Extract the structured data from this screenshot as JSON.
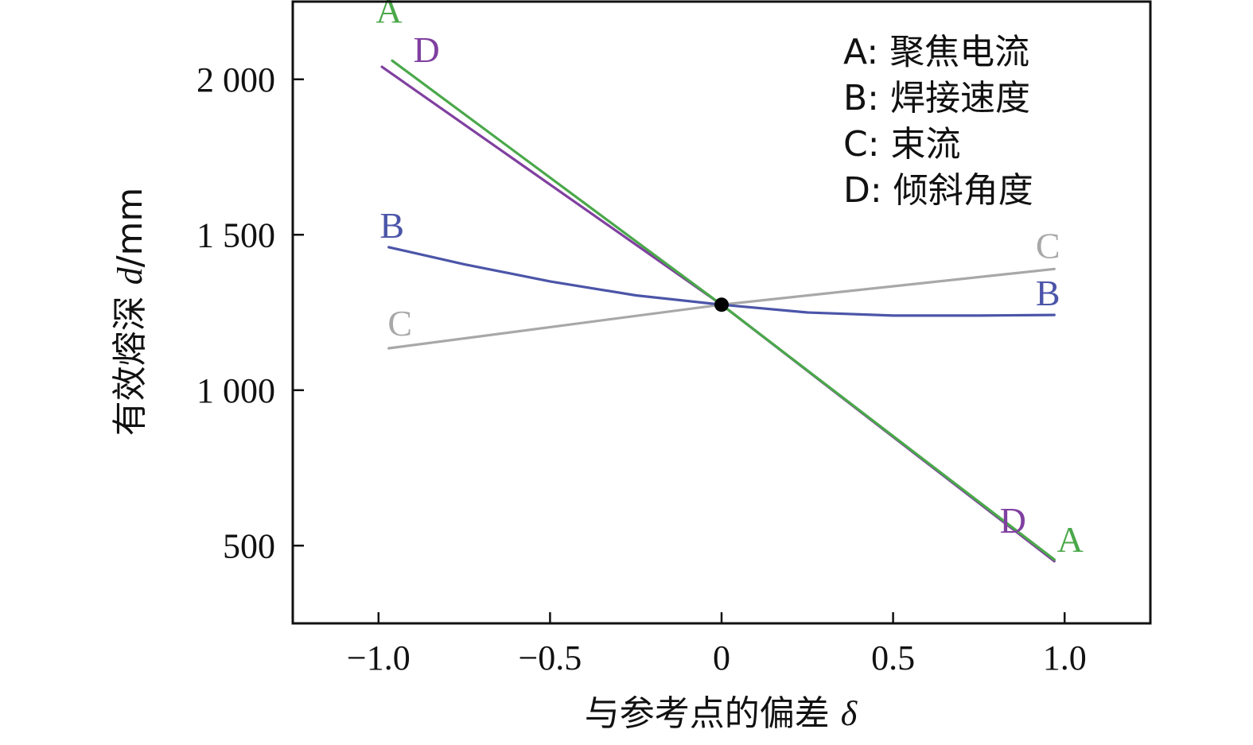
{
  "chart_data": {
    "type": "line",
    "xlabel_text": "与参考点的偏差 ",
    "xlabel_symbol": "δ",
    "ylabel_text": "有效熔深 ",
    "ylabel_symbol": "d",
    "ylabel_unit": "/mm",
    "xlim": [
      -1.25,
      1.25
    ],
    "ylim": [
      250,
      2250
    ],
    "xticks": [
      -1.0,
      -0.5,
      0,
      0.5,
      1.0
    ],
    "xtick_labels": [
      "−1.0",
      "−0.5",
      "0",
      "0.5",
      "1.0"
    ],
    "yticks": [
      500,
      1000,
      1500,
      2000
    ],
    "ytick_labels": [
      "500",
      "1 000",
      "1 500",
      "2 000"
    ],
    "legend": {
      "placement": "top-right",
      "entries": [
        "A: 聚焦电流",
        "B: 焊接速度",
        "C: 束流",
        "D: 倾斜角度"
      ]
    },
    "reference_point": {
      "x": 0,
      "y": 1275
    },
    "series": [
      {
        "name": "A",
        "color": "#4aa84a",
        "x": [
          -0.96,
          0,
          0.97
        ],
        "y": [
          2060,
          1275,
          455
        ],
        "start_label": "A",
        "end_label": "A"
      },
      {
        "name": "D",
        "color": "#8040a0",
        "x": [
          -0.99,
          0,
          0.97
        ],
        "y": [
          2040,
          1275,
          450
        ],
        "start_label": "D",
        "end_label": "D"
      },
      {
        "name": "B",
        "color": "#4b55a8",
        "x": [
          -0.97,
          -0.75,
          -0.5,
          -0.25,
          0,
          0.25,
          0.5,
          0.75,
          0.97
        ],
        "y": [
          1460,
          1405,
          1350,
          1305,
          1275,
          1250,
          1240,
          1240,
          1242
        ],
        "start_label": "B",
        "end_label": "B"
      },
      {
        "name": "C",
        "color": "#a8a8a8",
        "x": [
          -0.97,
          0,
          0.97
        ],
        "y": [
          1135,
          1275,
          1390
        ],
        "start_label": "C",
        "end_label": "C"
      }
    ]
  }
}
